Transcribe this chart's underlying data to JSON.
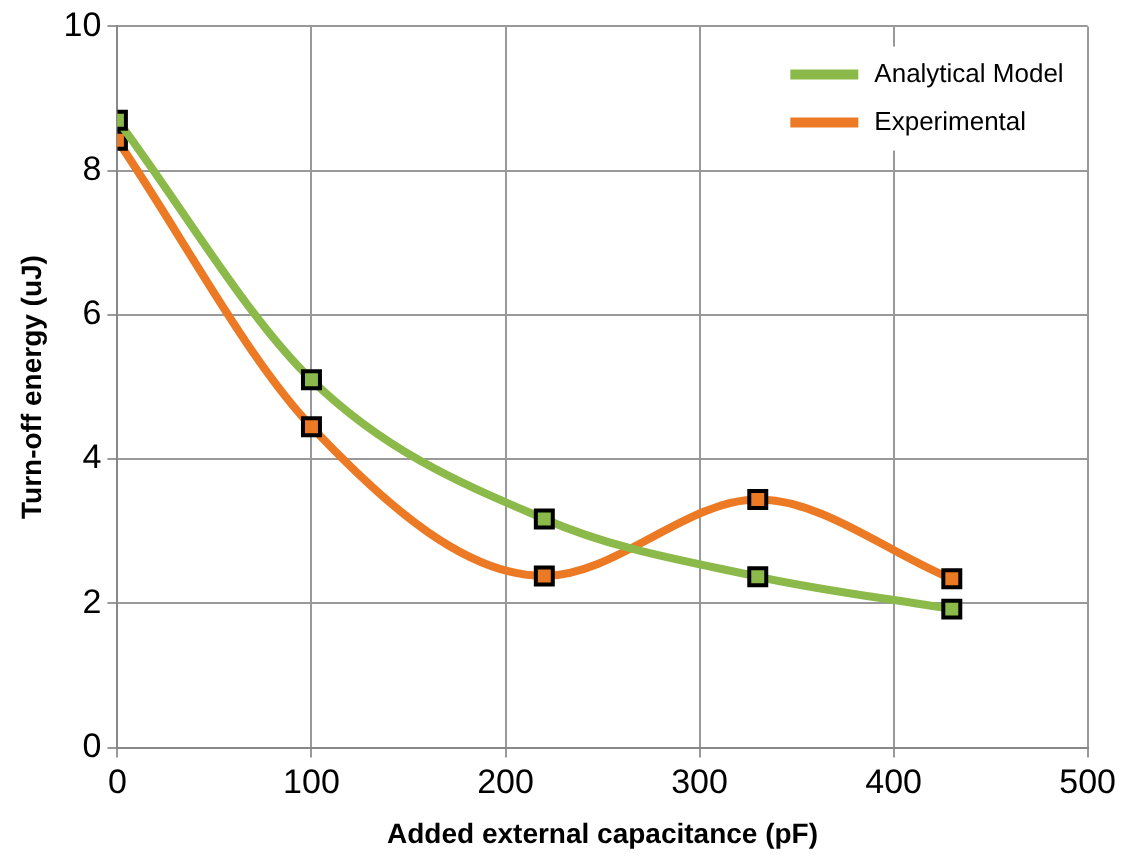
{
  "chart_data": {
    "type": "line",
    "xlabel": "Added external capacitance (pF)",
    "ylabel": "Turn-off energy (uJ)",
    "x": [
      0,
      100,
      220,
      330,
      430
    ],
    "series": [
      {
        "name": "Analytical Model",
        "color": "#8cba4a",
        "values": [
          8.7,
          5.1,
          3.17,
          2.37,
          1.92
        ]
      },
      {
        "name": "Experimental",
        "color": "#ec7a24",
        "values": [
          8.42,
          4.45,
          2.38,
          3.44,
          2.34
        ]
      }
    ],
    "xlim": [
      0,
      500
    ],
    "xticks": [
      0,
      100,
      200,
      300,
      400,
      500
    ],
    "ylim": [
      0,
      10
    ],
    "yticks": [
      0,
      2,
      4,
      6,
      8,
      10
    ],
    "grid": true,
    "legend": "top right",
    "marker": "square",
    "line_style": "solid"
  }
}
